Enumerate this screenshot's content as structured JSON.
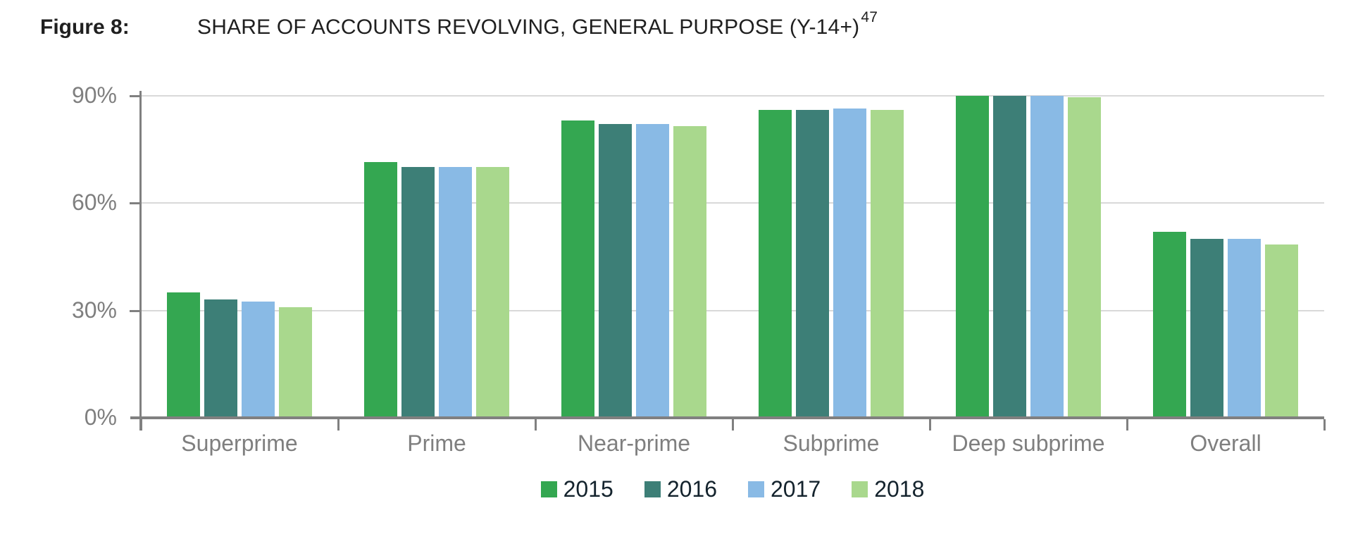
{
  "figure": {
    "label": "Figure 8:",
    "title": "SHARE OF ACCOUNTS REVOLVING, GENERAL PURPOSE (Y-14+)",
    "footnote_marker": "47"
  },
  "chart_data": {
    "type": "bar",
    "categories": [
      "Superprime",
      "Prime",
      "Near-prime",
      "Subprime",
      "Deep subprime",
      "Overall"
    ],
    "series": [
      {
        "name": "2015",
        "color": "#34a751",
        "values": [
          35,
          71.5,
          83,
          86,
          90,
          52
        ]
      },
      {
        "name": "2016",
        "color": "#3d7f77",
        "values": [
          33,
          70,
          82,
          86,
          90,
          50
        ]
      },
      {
        "name": "2017",
        "color": "#89bae5",
        "values": [
          32.5,
          70,
          82,
          86.5,
          90,
          50
        ]
      },
      {
        "name": "2018",
        "color": "#a9d88d",
        "values": [
          31,
          70,
          81.5,
          86,
          89.5,
          48.5
        ]
      }
    ],
    "title": "SHARE OF ACCOUNTS REVOLVING, GENERAL PURPOSE (Y-14+)",
    "xlabel": "",
    "ylabel": "",
    "ylim": [
      0,
      100
    ],
    "ytick_labels": [
      "0%",
      "30%",
      "60%",
      "90%"
    ],
    "ytick_values": [
      0,
      30,
      60,
      90
    ],
    "grid": "horizontal",
    "legend_position": "bottom-center"
  },
  "style_colors": {
    "axis": "#808080",
    "gridline": "#d9d9d9",
    "tick_label": "#7f7f7f",
    "legend_text": "#14232d",
    "title_text": "#1f1f1f"
  }
}
